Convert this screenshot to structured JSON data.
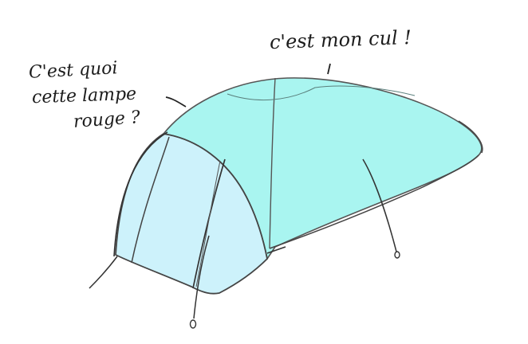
{
  "annotations": {
    "left_question": {
      "line1": "C'est quoi",
      "line2": "cette lampe",
      "line3": "rouge ?"
    },
    "right_answer": "c'est mon cul !"
  },
  "colors": {
    "vestibule_fill": "#a9f5f0",
    "front_fill": "#cdf2fb",
    "stroke": "#444444",
    "ink": "#1c1c1c"
  }
}
